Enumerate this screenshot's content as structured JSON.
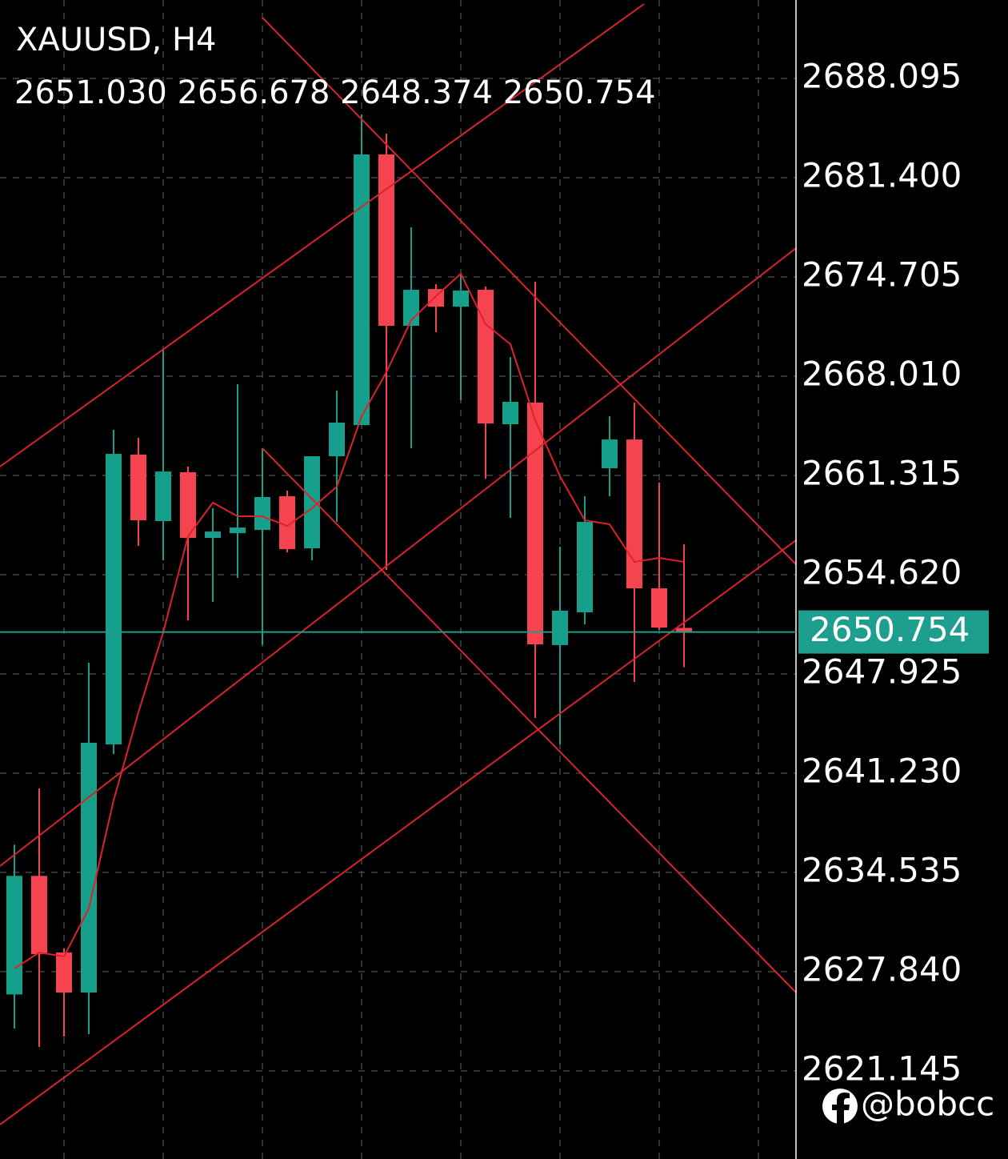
{
  "chart_data": {
    "type": "candlestick",
    "title": "XAUUSD, H4",
    "subtitle": "2651.030 2656.678 2648.374 2650.754",
    "watermark": "@bobcc",
    "categories": [
      null,
      null,
      null,
      null,
      null,
      null,
      null,
      null,
      null,
      null,
      null,
      null,
      null,
      null,
      null,
      null,
      null,
      null,
      null,
      null,
      null,
      null,
      null,
      null,
      null,
      null,
      null,
      null
    ],
    "open": [
      2626.3,
      2634.3,
      2629.13,
      2626.43,
      2643.17,
      2662.72,
      2658.24,
      2661.53,
      2657.1,
      2657.42,
      2657.64,
      2659.91,
      2656.4,
      2662.61,
      2664.71,
      2682.97,
      2671.41,
      2673.89,
      2672.7,
      2673.84,
      2664.77,
      2666.23,
      2649.87,
      2652.08,
      2661.8,
      2663.74,
      2653.7,
      2651.03
    ],
    "high": [
      2636.4,
      2640.2,
      2629.4,
      2648.68,
      2664.39,
      2663.85,
      2669.79,
      2661.91,
      2659.1,
      2667.47,
      2663.15,
      2660.29,
      2662.61,
      2667.04,
      2685.67,
      2684.37,
      2678.05,
      2674.22,
      2674.92,
      2674.06,
      2669.3,
      2674.38,
      2656.51,
      2659.91,
      2665.31,
      2666.23,
      2660.83,
      2656.678
    ],
    "low": [
      2624.0,
      2622.76,
      2623.46,
      2623.62,
      2642.52,
      2656.56,
      2655.59,
      2651.54,
      2652.78,
      2654.4,
      2649.87,
      2656.13,
      2655.59,
      2658.18,
      2664.71,
      2654.94,
      2663.15,
      2670.98,
      2666.39,
      2661.1,
      2658.45,
      2644.95,
      2643.17,
      2651.27,
      2659.91,
      2647.38,
      2650.89,
      2648.374
    ],
    "close": [
      2634.3,
      2629.02,
      2626.43,
      2643.28,
      2662.77,
      2658.29,
      2661.58,
      2657.1,
      2657.53,
      2657.8,
      2659.86,
      2656.34,
      2662.61,
      2664.88,
      2682.97,
      2671.41,
      2673.84,
      2672.7,
      2673.79,
      2664.82,
      2666.28,
      2649.92,
      2652.19,
      2658.18,
      2663.74,
      2653.7,
      2651.05,
      2650.754
    ],
    "ma": [
      2628.05,
      2629.13,
      2628.86,
      2632.1,
      2639.39,
      2645.33,
      2650.73,
      2657.21,
      2659.48,
      2658.56,
      2658.56,
      2657.91,
      2659.1,
      2660.56,
      2665.31,
      2668.28,
      2671.79,
      2673.41,
      2674.92,
      2671.52,
      2670.17,
      2665.04,
      2661.26,
      2658.29,
      2658.02,
      2655.48,
      2655.75,
      2655.48
    ],
    "ma_color": "#e0202a",
    "up_color": "#16a08c",
    "down_color": "#f5444f",
    "last_price": 2650.754,
    "last_price_color": "#1e9e8e",
    "ylim": [
      2615.2,
      2693.39
    ],
    "yticks": [
      2688.095,
      {
        "value": 2681.4,
        "label": "2681.400"
      },
      2674.705,
      {
        "value": 2668.01,
        "label": "2668.010"
      },
      2661.315,
      {
        "value": 2654.62,
        "label": "2654.620"
      },
      2647.925,
      {
        "value": 2641.23,
        "label": "2641.230"
      },
      2634.535,
      {
        "value": 2627.84,
        "label": "2627.840"
      },
      2621.145
    ],
    "grid": true
  }
}
